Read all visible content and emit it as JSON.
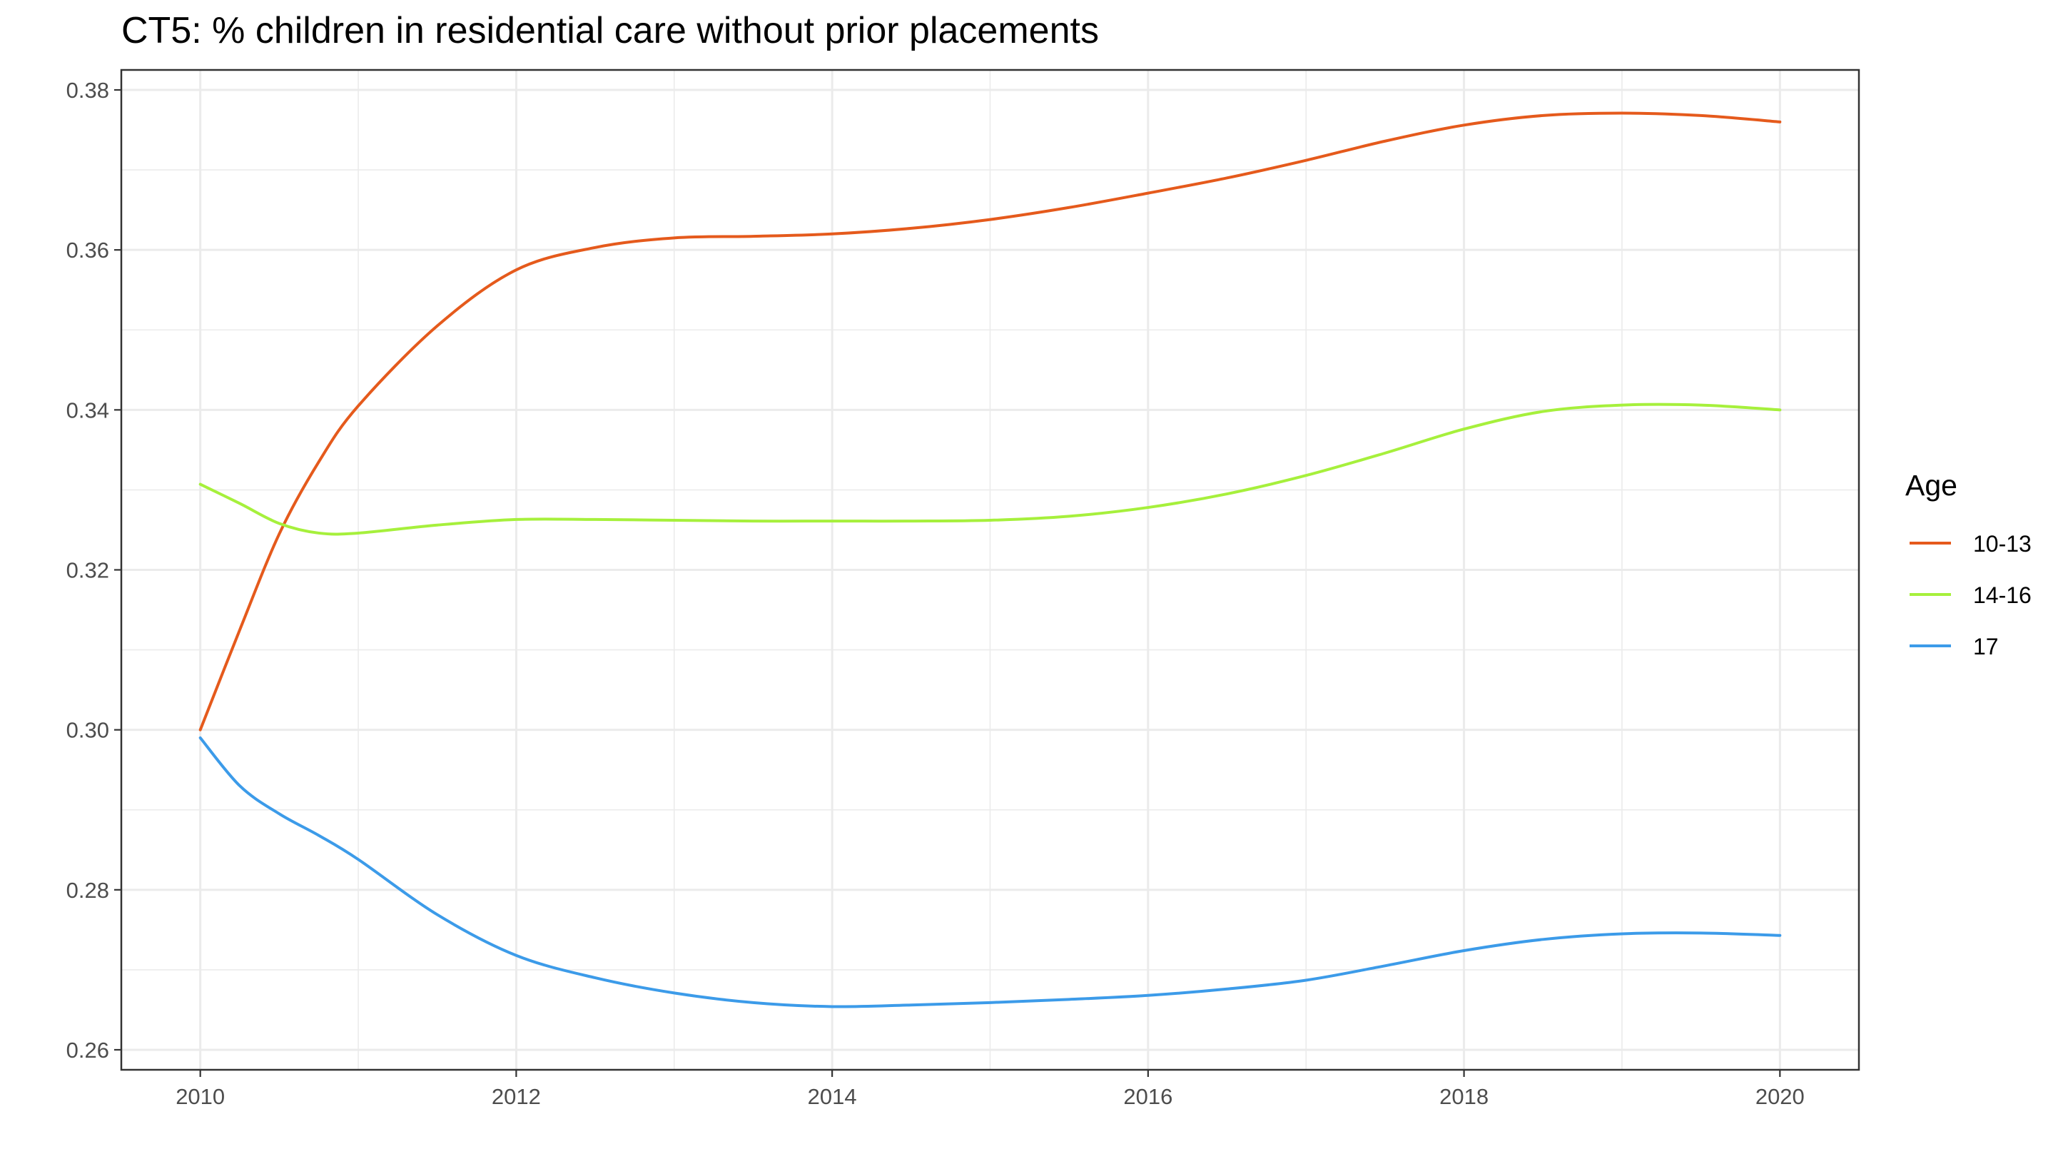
{
  "chart_data": {
    "type": "line",
    "title": "CT5: % children in residential care without prior placements",
    "xlabel": "",
    "ylabel": "",
    "xlim": [
      2009.5,
      2020.5
    ],
    "ylim": [
      0.2575,
      0.3825
    ],
    "x_ticks": [
      2010,
      2012,
      2014,
      2016,
      2018,
      2020
    ],
    "y_ticks": [
      0.26,
      0.28,
      0.3,
      0.32,
      0.34,
      0.36,
      0.38
    ],
    "y_tick_labels": [
      "0.26",
      "0.28",
      "0.30",
      "0.32",
      "0.34",
      "0.36",
      "0.38"
    ],
    "grid": true,
    "legend": {
      "title": "Age",
      "position": "right"
    },
    "series": [
      {
        "name": "10-13",
        "color": "#E55A1C",
        "x": [
          2010,
          2010.25,
          2010.5,
          2010.75,
          2011,
          2011.5,
          2012,
          2012.5,
          2013,
          2013.5,
          2014,
          2014.5,
          2015,
          2015.5,
          2016,
          2016.5,
          2017,
          2017.5,
          2018,
          2018.5,
          2019,
          2019.5,
          2020
        ],
        "y": [
          0.3,
          0.3125,
          0.3245,
          0.3335,
          0.3405,
          0.3505,
          0.3575,
          0.3603,
          0.3615,
          0.3617,
          0.362,
          0.3627,
          0.3638,
          0.3653,
          0.3671,
          0.369,
          0.3712,
          0.3736,
          0.3756,
          0.3768,
          0.3771,
          0.3768,
          0.376
        ]
      },
      {
        "name": "14-16",
        "color": "#A6F03C",
        "x": [
          2010,
          2010.25,
          2010.5,
          2010.75,
          2011,
          2011.5,
          2012,
          2012.5,
          2013,
          2013.5,
          2014,
          2014.5,
          2015,
          2015.5,
          2016,
          2016.5,
          2017,
          2017.5,
          2018,
          2018.5,
          2019,
          2019.5,
          2020
        ],
        "y": [
          0.3307,
          0.3283,
          0.3258,
          0.3246,
          0.3246,
          0.3256,
          0.3263,
          0.3263,
          0.3262,
          0.3261,
          0.3261,
          0.3261,
          0.3262,
          0.3267,
          0.3278,
          0.3295,
          0.3318,
          0.3346,
          0.3376,
          0.3398,
          0.3406,
          0.3406,
          0.34
        ]
      },
      {
        "name": "17",
        "color": "#3C9BE9",
        "x": [
          2010,
          2010.25,
          2010.5,
          2010.75,
          2011,
          2011.5,
          2012,
          2012.5,
          2013,
          2013.5,
          2014,
          2014.5,
          2015,
          2015.5,
          2016,
          2016.5,
          2017,
          2017.5,
          2018,
          2018.5,
          2019,
          2019.5,
          2020
        ],
        "y": [
          0.299,
          0.293,
          0.2895,
          0.2868,
          0.2838,
          0.2769,
          0.2718,
          0.269,
          0.2671,
          0.2659,
          0.2654,
          0.2656,
          0.2659,
          0.2663,
          0.2668,
          0.2676,
          0.2687,
          0.2705,
          0.2724,
          0.2738,
          0.2745,
          0.2746,
          0.2743
        ]
      }
    ]
  }
}
